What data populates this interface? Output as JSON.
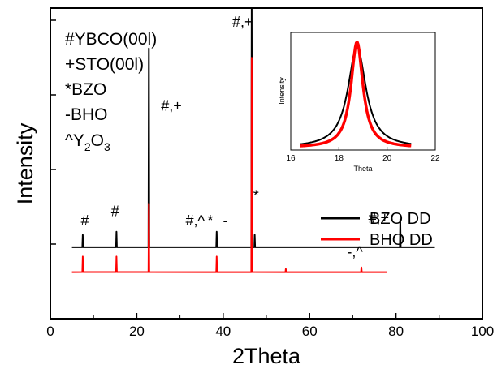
{
  "chart_data": [
    {
      "type": "line",
      "xlabel": "2Theta",
      "ylabel": "Intensity",
      "xlim": [
        0,
        100
      ],
      "x_ticks": [
        "0",
        "20",
        "40",
        "60",
        "80",
        "100"
      ],
      "y_tick_labels": "none",
      "legend": {
        "placement": "lower-right",
        "entries": [
          {
            "name": "BZO DD",
            "color": "#000000"
          },
          {
            "name": "BHO DD",
            "color": "#ff0000"
          }
        ]
      },
      "key_text": [
        "#YBCO(00l)",
        "+STO(00l)",
        "*BZO",
        "-BHO",
        "^Y2O3"
      ],
      "series": [
        {
          "name": "BZO DD",
          "color": "#000000",
          "x_range": [
            5,
            89
          ],
          "baseline": 0.23,
          "peaks": [
            {
              "x": 7.5,
              "y": 0.27
            },
            {
              "x": 15.3,
              "y": 0.28
            },
            {
              "x": 22.8,
              "y": 0.87
            },
            {
              "x": 38.5,
              "y": 0.28
            },
            {
              "x": 46.6,
              "y": 1.0
            },
            {
              "x": 47.3,
              "y": 0.27
            },
            {
              "x": 81.0,
              "y": 0.32
            }
          ]
        },
        {
          "name": "BHO DD",
          "color": "#ff0000",
          "x_range": [
            5,
            78
          ],
          "baseline": 0.15,
          "peaks": [
            {
              "x": 7.5,
              "y": 0.2
            },
            {
              "x": 15.3,
              "y": 0.2
            },
            {
              "x": 22.8,
              "y": 0.37
            },
            {
              "x": 38.5,
              "y": 0.2
            },
            {
              "x": 46.6,
              "y": 0.84
            },
            {
              "x": 54.5,
              "y": 0.16
            },
            {
              "x": 72.0,
              "y": 0.165
            }
          ]
        }
      ],
      "annotations": [
        {
          "text": "#",
          "x": 8.0,
          "y": 0.3
        },
        {
          "text": "#",
          "x": 15.0,
          "y": 0.33
        },
        {
          "text": "#,+",
          "x": 28.0,
          "y": 0.67
        },
        {
          "text": "#,^",
          "x": 33.5,
          "y": 0.3
        },
        {
          "text": "*",
          "x": 37.0,
          "y": 0.3
        },
        {
          "text": "-",
          "x": 40.5,
          "y": 0.3
        },
        {
          "text": "#,+",
          "x": 44.5,
          "y": 0.94
        },
        {
          "text": "*",
          "x": 47.6,
          "y": 0.38
        },
        {
          "text": "#,+",
          "x": 76.0,
          "y": 0.31
        },
        {
          "text": "-,^",
          "x": 70.5,
          "y": 0.2
        }
      ]
    },
    {
      "type": "line",
      "inset": true,
      "xlabel": "Theta",
      "ylabel": "Intensity",
      "xlim": [
        16,
        22
      ],
      "x_ticks": [
        "16",
        "18",
        "20",
        "22"
      ],
      "series": [
        {
          "name": "BZO DD",
          "color": "#000000",
          "center": 18.75,
          "peak": 0.86,
          "width": 0.45
        },
        {
          "name": "BHO DD",
          "color": "#ff0000",
          "center": 18.75,
          "peak": 0.9,
          "width": 0.3
        }
      ]
    }
  ]
}
